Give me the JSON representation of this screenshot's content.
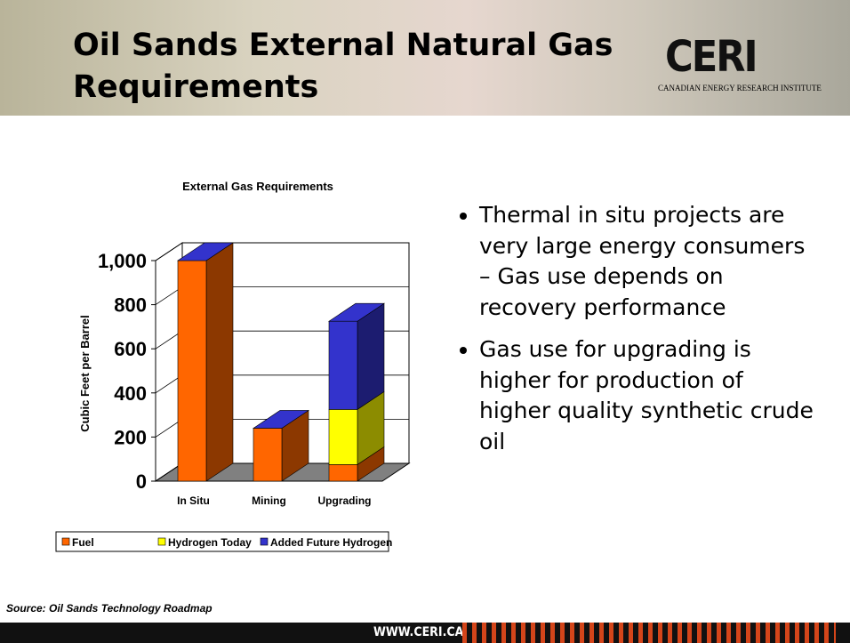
{
  "header": {
    "title": "Oil Sands External Natural Gas Requirements",
    "logo": "CERI",
    "logo_caption": "CANADIAN ENERGY RESEARCH INSTITUTE"
  },
  "bullets": [
    "Thermal in situ projects are very large energy consumers – Gas use depends on recovery performance",
    "Gas use for upgrading is higher for production of higher quality synthetic crude oil"
  ],
  "source": "Source: Oil Sands Technology Roadmap",
  "footer": "WWW.CERI.CA",
  "chart_data": {
    "type": "bar3d_stacked",
    "title": "External Gas Requirements",
    "y_label": "Cubic Feet per Barrel",
    "categories": [
      "In Situ",
      "Mining",
      "Upgrading"
    ],
    "series": [
      {
        "name": "Fuel",
        "color": "#ff6600",
        "values": [
          1000,
          240,
          75
        ]
      },
      {
        "name": "Hydrogen Today",
        "color": "#ffff00",
        "values": [
          null,
          null,
          250
        ]
      },
      {
        "name": "Added Future Hydrogen",
        "color": "#3333cc",
        "values": [
          null,
          null,
          400
        ]
      }
    ],
    "ylim": [
      0,
      1000
    ],
    "yticks": [
      0,
      200,
      400,
      600,
      800,
      {
        "value": 1000,
        "label": "1,000"
      }
    ],
    "grid": true
  }
}
